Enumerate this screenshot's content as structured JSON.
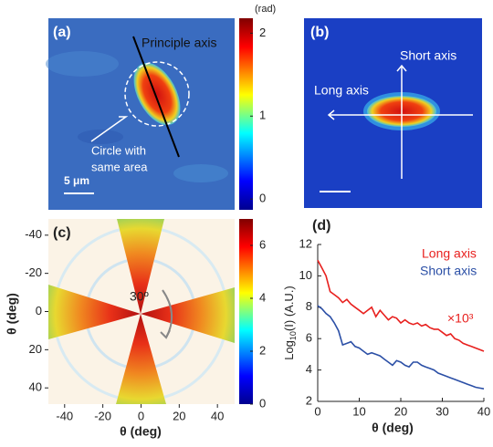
{
  "chart_data": [
    {
      "type": "image",
      "label": "(a)",
      "annotations": [
        "Principle axis",
        "Circle with",
        "same area"
      ],
      "scale_bar": "5 μm",
      "colorbar": {
        "unit": "(rad)",
        "ylim": [
          -0.13,
          2.18
        ],
        "yticks": [
          0,
          1,
          2
        ]
      }
    },
    {
      "type": "image",
      "label": "(b)",
      "annotations": [
        "Short axis",
        "Long axis"
      ]
    },
    {
      "type": "heatmap",
      "label": "(c)",
      "xlim": [
        -48.5,
        49
      ],
      "ylim": [
        -48.5,
        48.5
      ],
      "y_inverted": true,
      "xticks": [
        -40,
        -20,
        0,
        20,
        40
      ],
      "yticks": [
        -40,
        -20,
        0,
        20,
        40
      ],
      "xlabel": "θ (deg)",
      "ylabel": "θ (deg)",
      "annotation": "30º",
      "colorbar": {
        "ylim": [
          0,
          7
        ],
        "yticks": [
          0,
          2,
          4,
          6
        ]
      }
    },
    {
      "type": "line",
      "label": "(d)",
      "xlabel": "θ (deg)",
      "ylabel": [
        "Log",
        "10",
        "(I) (A.U.)"
      ],
      "annotation": "×10³",
      "xlim": [
        0,
        40
      ],
      "ylim": [
        2,
        12
      ],
      "xticks": [
        0,
        10,
        20,
        30,
        40
      ],
      "yticks": [
        2,
        4,
        6,
        8,
        10,
        12
      ],
      "x": [
        0,
        1,
        2,
        3,
        4,
        5,
        6,
        7,
        8,
        9,
        10,
        11,
        12,
        13,
        14,
        15,
        16,
        17,
        18,
        19,
        20,
        21,
        22,
        23,
        24,
        25,
        26,
        27,
        28,
        29,
        30,
        31,
        32,
        33,
        34,
        35,
        36,
        37,
        38,
        39,
        40
      ],
      "series": [
        {
          "name": "Long axis",
          "color": "#e8201e",
          "values": [
            11,
            10.5,
            10,
            9,
            8.8,
            8.6,
            8.3,
            8.5,
            8.2,
            8,
            7.8,
            7.6,
            7.8,
            8,
            7.4,
            7.8,
            7.5,
            7.2,
            7.4,
            7.3,
            7,
            7.2,
            7,
            6.9,
            7,
            6.8,
            6.9,
            6.7,
            6.6,
            6.6,
            6.4,
            6.2,
            6.3,
            6,
            5.9,
            5.7,
            5.6,
            5.5,
            5.4,
            5.3,
            5.2
          ]
        },
        {
          "name": "Short axis",
          "color": "#2b4fa6",
          "values": [
            8.1,
            7.9,
            7.6,
            7.4,
            7,
            6.5,
            5.6,
            5.7,
            5.8,
            5.5,
            5.4,
            5.2,
            5,
            5.1,
            5,
            4.9,
            4.7,
            4.5,
            4.3,
            4.6,
            4.5,
            4.3,
            4.2,
            4.5,
            4.5,
            4.3,
            4.2,
            4.1,
            4,
            3.8,
            3.7,
            3.6,
            3.5,
            3.4,
            3.3,
            3.2,
            3.1,
            3,
            2.9,
            2.85,
            2.8
          ]
        }
      ]
    }
  ]
}
